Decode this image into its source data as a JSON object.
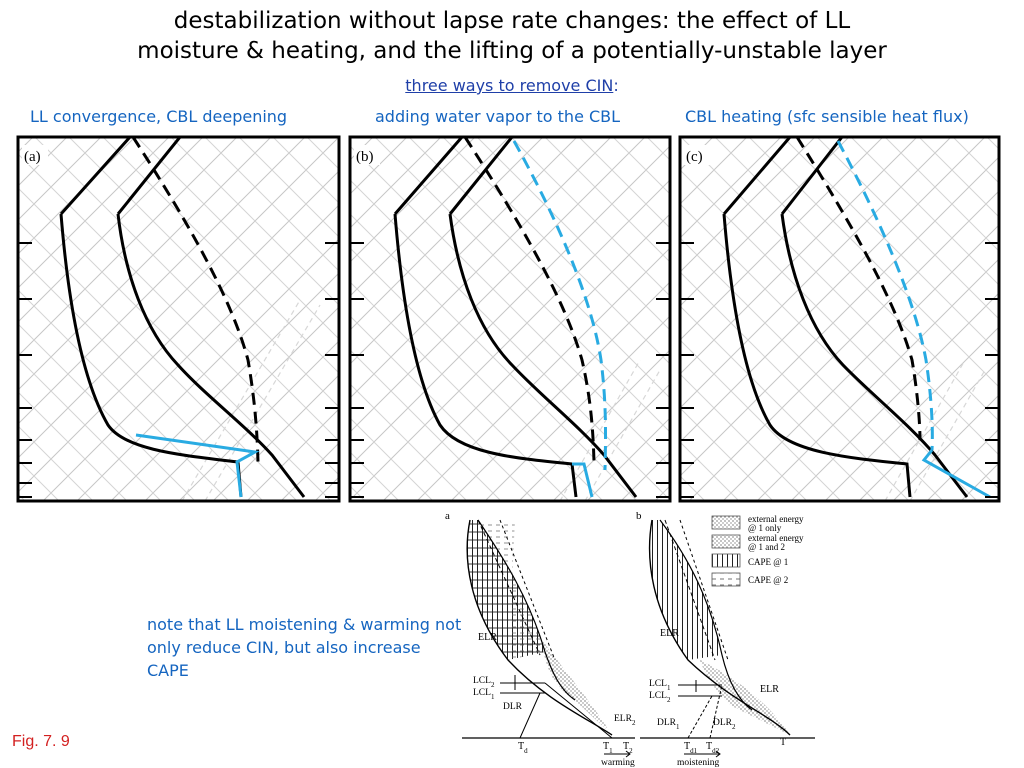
{
  "title": {
    "line1": "destabilization without lapse rate changes: the effect of LL",
    "line2": "moisture & heating, and the lifting of a potentially-unstable layer"
  },
  "subtitle": {
    "link": "three ways to remove CIN",
    "suffix": ":"
  },
  "panels": [
    {
      "letter": "(a)",
      "label": "LL convergence, CBL deepening"
    },
    {
      "letter": "(b)",
      "label": "adding water vapor to the CBL"
    },
    {
      "letter": "(c)",
      "label": "CBL heating (sfc sensible heat flux)"
    }
  ],
  "note": "note that LL moistening & warming not only reduce CIN, but also increase CAPE",
  "fig_label": "Fig. 7. 9",
  "inset": {
    "letter_a": "a",
    "letter_b": "b",
    "elr": "ELR",
    "elr2": "ELR",
    "elr2_sub": "2",
    "dlr": "DLR",
    "dlr1": "DLR",
    "dlr1_sub": "1",
    "dlr2": "DLR",
    "dlr2_sub": "2",
    "lcl": "LCL",
    "sub1": "1",
    "sub2": "2",
    "td": "T",
    "td_sub": "d",
    "t1": "T",
    "t2": "T",
    "td1_sub": "d1",
    "td2_sub": "d2",
    "t": "T",
    "warming": "warming",
    "moistening": "moistening",
    "legend": [
      "external energy",
      "@ 1 only",
      "external energy",
      "@ 1 and 2",
      "CAPE @ 1",
      "CAPE @ 2"
    ]
  },
  "colors": {
    "accent": "#29abe2",
    "text_blue": "#1565c0",
    "link_blue": "#1f3fa8",
    "fig_red": "#d32020"
  }
}
